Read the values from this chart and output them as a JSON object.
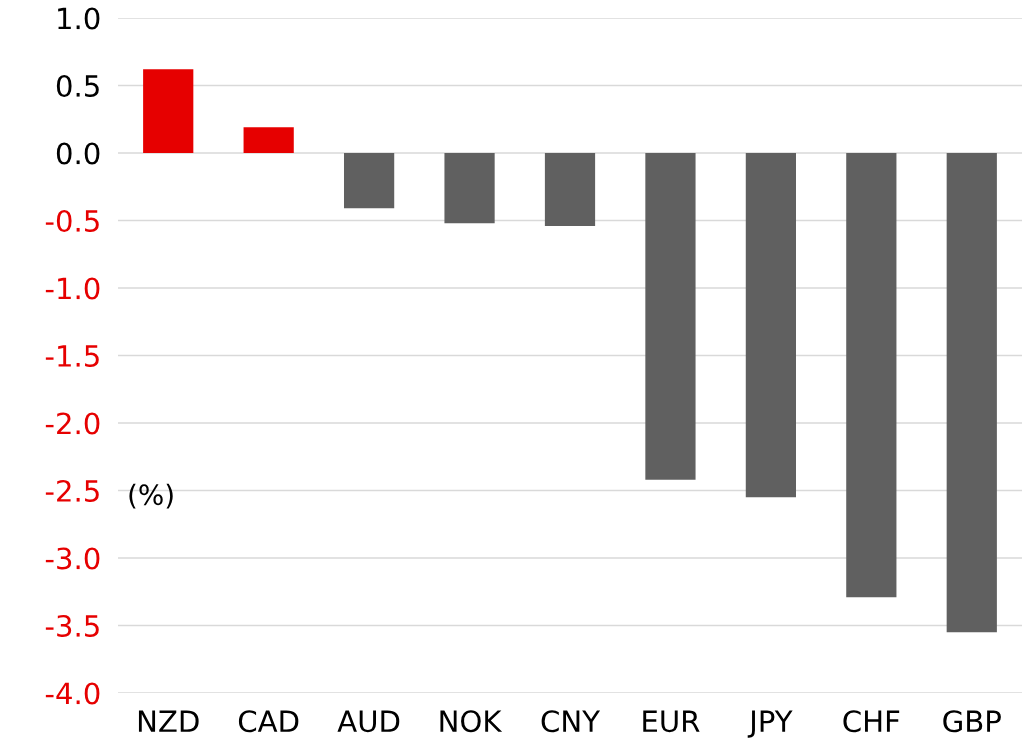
{
  "chart_data": {
    "type": "bar",
    "ylabel": "(%)",
    "categories": [
      "NZD",
      "CAD",
      "AUD",
      "NOK",
      "CNY",
      "EUR",
      "JPY",
      "CHF",
      "GBP"
    ],
    "values": [
      0.62,
      0.19,
      -0.41,
      -0.52,
      -0.54,
      -2.42,
      -2.55,
      -3.29,
      -3.55
    ],
    "colors": [
      "#e60000",
      "#e60000",
      "#606060",
      "#606060",
      "#606060",
      "#606060",
      "#606060",
      "#606060",
      "#606060"
    ],
    "ylim": [
      -4.0,
      1.0
    ],
    "yticks": [
      {
        "value": -4.0,
        "label": "-4.0"
      },
      {
        "value": -3.5,
        "label": "-3.5"
      },
      {
        "value": -3.0,
        "label": "-3.0"
      },
      {
        "value": -2.5,
        "label": "-2.5"
      },
      {
        "value": -2.0,
        "label": "-2.0"
      },
      {
        "value": -1.5,
        "label": "-1.5"
      },
      {
        "value": -1.0,
        "label": "-1.0"
      },
      {
        "value": -0.5,
        "label": "-0.5"
      },
      {
        "value": 0.0,
        "label": "0.0"
      },
      {
        "value": 0.5,
        "label": "0.5"
      },
      {
        "value": 1.0,
        "label": "1.0"
      }
    ],
    "grid": "y",
    "legend": false
  }
}
